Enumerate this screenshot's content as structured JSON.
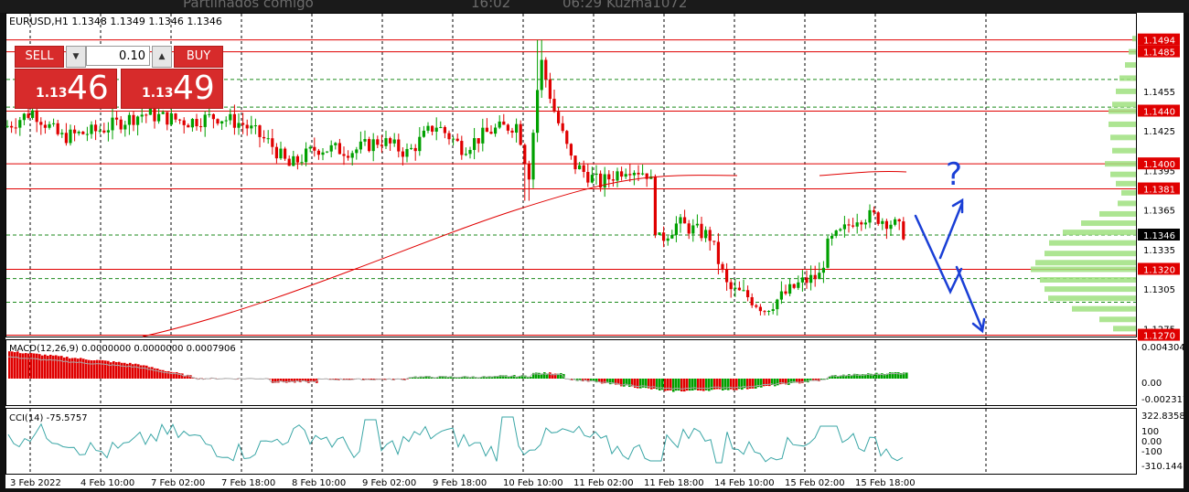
{
  "window": {
    "background_text": [
      "Partilhados comigo",
      "16:02",
      "06:29 Kuzma1072"
    ]
  },
  "chart": {
    "title": "EURUSD,H1  1.1348 1.1349 1.1346 1.1346",
    "up_color": "#00a000",
    "down_color": "#e00000",
    "ma_color": "#e00000"
  },
  "trade_panel": {
    "sell_label": "SELL",
    "buy_label": "BUY",
    "lot": "0.10",
    "sell_small": "1.13",
    "sell_big": "46",
    "buy_small": "1.13",
    "buy_big": "49",
    "color": "#d72b2b"
  },
  "price_axis": {
    "ticks": [
      "1.1455",
      "1.1425",
      "1.1395",
      "1.1365",
      "1.1335",
      "1.1305",
      "1.1275"
    ],
    "red_labels": [
      "1.1494",
      "1.1485",
      "1.1440",
      "1.1400",
      "1.1381",
      "1.1320",
      "1.1270"
    ],
    "current_label": "1.1346"
  },
  "horizontal_lines": {
    "red": [
      1.1494,
      1.1485,
      1.144,
      1.14,
      1.1381,
      1.132,
      1.127
    ],
    "green_dashed": [
      1.1464,
      1.1443,
      1.1346,
      1.1313,
      1.1295
    ]
  },
  "time_axis": {
    "labels": [
      "3 Feb 2022",
      "4 Feb 10:00",
      "7 Feb 02:00",
      "7 Feb 18:00",
      "8 Feb 10:00",
      "9 Feb 02:00",
      "9 Feb 18:00",
      "10 Feb 10:00",
      "11 Feb 02:00",
      "11 Feb 18:00",
      "14 Feb 10:00",
      "15 Feb 02:00",
      "15 Feb 18:00"
    ]
  },
  "macd": {
    "label": "MACD(12,26,9) 0.0000000 0.0000000 0.0007906",
    "ticks": [
      "0.004304",
      "0.00",
      "-0.002317"
    ]
  },
  "cci": {
    "label": "CCI(14) -75.5757",
    "ticks": [
      "322.8358",
      "100",
      "0.00",
      "-100",
      "-310.144"
    ]
  },
  "annotation": {
    "question_mark": "?",
    "color": "#1a3fd6"
  },
  "chart_data": {
    "type": "candlestick",
    "symbol": "EURUSD",
    "timeframe": "H1",
    "ylim": [
      1.127,
      1.15
    ],
    "close_path": [
      {
        "x": "3 Feb 2022",
        "y": 1.1428
      },
      {
        "x": "4 Feb 10:00",
        "y": 1.143
      },
      {
        "x": "7 Feb 02:00",
        "y": 1.1437
      },
      {
        "x": "7 Feb 18:00",
        "y": 1.1428
      },
      {
        "x": "8 Feb 10:00",
        "y": 1.141
      },
      {
        "x": "9 Feb 02:00",
        "y": 1.1418
      },
      {
        "x": "9 Feb 18:00",
        "y": 1.1418
      },
      {
        "x": "10 Feb 10:00",
        "y": 1.144
      },
      {
        "x": "11 Feb 02:00",
        "y": 1.1375
      },
      {
        "x": "11 Feb 18:00",
        "y": 1.1348
      },
      {
        "x": "14 Feb 10:00",
        "y": 1.1308
      },
      {
        "x": "15 Feb 02:00",
        "y": 1.132
      },
      {
        "x": "15 Feb 18:00",
        "y": 1.135
      }
    ],
    "last_price": 1.1346,
    "high_spike": 1.1494,
    "low_spike": 1.1285
  }
}
